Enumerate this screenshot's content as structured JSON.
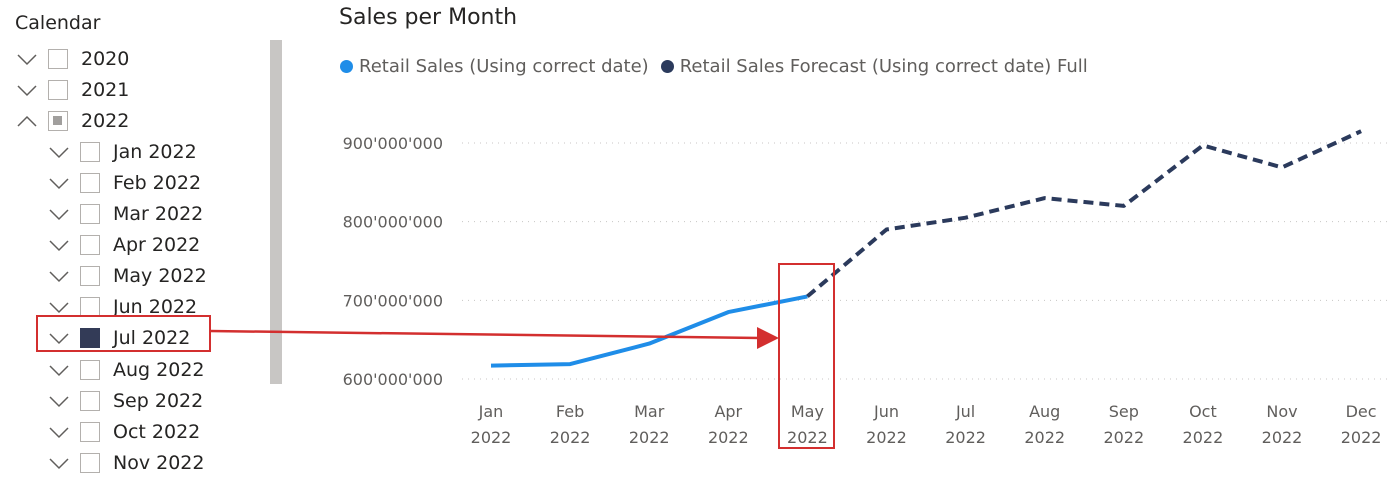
{
  "slicer": {
    "title": "Calendar",
    "items": [
      {
        "label": "2020",
        "level": 0,
        "chevron": "down",
        "state": "unchecked"
      },
      {
        "label": "2021",
        "level": 0,
        "chevron": "down",
        "state": "unchecked"
      },
      {
        "label": "2022",
        "level": 0,
        "chevron": "up",
        "state": "partial"
      },
      {
        "label": "Jan 2022",
        "level": 1,
        "chevron": "down",
        "state": "unchecked"
      },
      {
        "label": "Feb 2022",
        "level": 1,
        "chevron": "down",
        "state": "unchecked"
      },
      {
        "label": "Mar 2022",
        "level": 1,
        "chevron": "down",
        "state": "unchecked"
      },
      {
        "label": "Apr 2022",
        "level": 1,
        "chevron": "down",
        "state": "unchecked"
      },
      {
        "label": "May 2022",
        "level": 1,
        "chevron": "down",
        "state": "unchecked"
      },
      {
        "label": "Jun 2022",
        "level": 1,
        "chevron": "down",
        "state": "unchecked"
      },
      {
        "label": "Jul 2022",
        "level": 1,
        "chevron": "down",
        "state": "checked"
      },
      {
        "label": "Aug 2022",
        "level": 1,
        "chevron": "down",
        "state": "unchecked"
      },
      {
        "label": "Sep 2022",
        "level": 1,
        "chevron": "down",
        "state": "unchecked"
      },
      {
        "label": "Oct 2022",
        "level": 1,
        "chevron": "down",
        "state": "unchecked"
      },
      {
        "label": "Nov 2022",
        "level": 1,
        "chevron": "down",
        "state": "unchecked"
      }
    ]
  },
  "colors": {
    "actual": "#1f8de8",
    "forecast": "#2b3a5c",
    "annotation": "#d32f2f",
    "checked": "#333b57",
    "gridline": "#c8c6c4"
  },
  "chart_data": {
    "type": "line",
    "title": "Sales per Month",
    "legend_position": "top-left",
    "grid": true,
    "categories": [
      "Jan",
      "Feb",
      "Mar",
      "Apr",
      "May",
      "Jun",
      "Jul",
      "Aug",
      "Sep",
      "Oct",
      "Nov",
      "Dec"
    ],
    "year_label": "2022",
    "yticks": [
      "600'000'000",
      "700'000'000",
      "800'000'000",
      "900'000'000"
    ],
    "ytick_values": [
      600000000,
      700000000,
      800000000,
      900000000
    ],
    "ylim": [
      580000000,
      930000000
    ],
    "series": [
      {
        "name": "Retail Sales (Using correct date)",
        "style": "solid",
        "values": [
          617000000,
          619000000,
          645000000,
          685000000,
          705000000,
          null,
          null,
          null,
          null,
          null,
          null,
          null
        ]
      },
      {
        "name": "Retail Sales Forecast (Using correct date) Full",
        "style": "dashed",
        "values": [
          null,
          null,
          null,
          null,
          705000000,
          790000000,
          805000000,
          830000000,
          820000000,
          897000000,
          869000000,
          915000000
        ]
      }
    ],
    "highlight_category": "May"
  }
}
